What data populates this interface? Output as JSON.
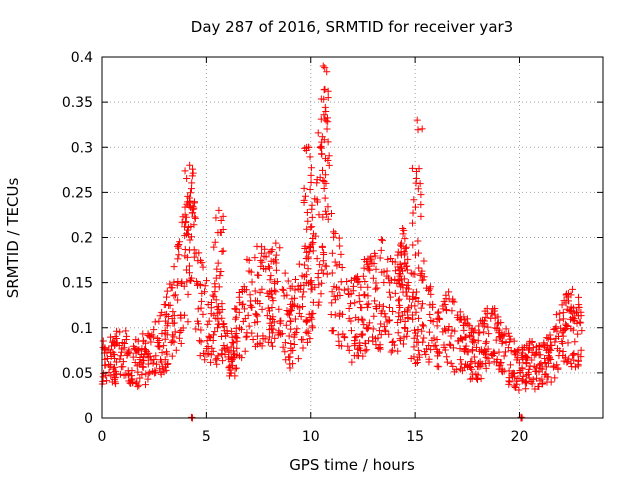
{
  "chart_data": {
    "type": "scatter",
    "title": "Day 287 of 2016, SRMTID for receiver yar3",
    "xlabel": "GPS time / hours",
    "ylabel": "SRMTID / TECUs",
    "xlim": [
      0,
      24
    ],
    "ylim": [
      0,
      0.4
    ],
    "x_ticks": [
      0,
      5,
      10,
      15,
      20
    ],
    "x_tick_labels": [
      "0",
      "5",
      "10",
      "15",
      "20"
    ],
    "y_ticks": [
      0,
      0.05,
      0.1,
      0.15,
      0.2,
      0.25,
      0.3,
      0.35,
      0.4
    ],
    "y_tick_labels": [
      "0",
      "0.05",
      "0.1",
      "0.15",
      "0.2",
      "0.25",
      "0.3",
      "0.35",
      "0.4"
    ],
    "grid": true,
    "marker": "+",
    "color": "#ff0000",
    "trend": [
      [
        0,
        0.06
      ],
      [
        0.5,
        0.065
      ],
      [
        1,
        0.07
      ],
      [
        1.5,
        0.06
      ],
      [
        2,
        0.065
      ],
      [
        2.5,
        0.075
      ],
      [
        3,
        0.09
      ],
      [
        3.5,
        0.12
      ],
      [
        4,
        0.17
      ],
      [
        4.3,
        0.2
      ],
      [
        4.6,
        0.13
      ],
      [
        5,
        0.11
      ],
      [
        5.5,
        0.1
      ],
      [
        6,
        0.07
      ],
      [
        6.5,
        0.09
      ],
      [
        7,
        0.13
      ],
      [
        7.5,
        0.14
      ],
      [
        8,
        0.13
      ],
      [
        8.5,
        0.14
      ],
      [
        9,
        0.1
      ],
      [
        9.5,
        0.12
      ],
      [
        10,
        0.16
      ],
      [
        10.5,
        0.24
      ],
      [
        10.8,
        0.27
      ],
      [
        11,
        0.16
      ],
      [
        11.5,
        0.13
      ],
      [
        12,
        0.11
      ],
      [
        12.5,
        0.12
      ],
      [
        13,
        0.13
      ],
      [
        13.5,
        0.14
      ],
      [
        14,
        0.12
      ],
      [
        14.5,
        0.14
      ],
      [
        15,
        0.1
      ],
      [
        15.3,
        0.13
      ],
      [
        15.6,
        0.11
      ],
      [
        16,
        0.09
      ],
      [
        16.5,
        0.1
      ],
      [
        17,
        0.09
      ],
      [
        17.5,
        0.08
      ],
      [
        18,
        0.07
      ],
      [
        18.5,
        0.09
      ],
      [
        19,
        0.08
      ],
      [
        19.5,
        0.065
      ],
      [
        20,
        0.055
      ],
      [
        20.5,
        0.06
      ],
      [
        21,
        0.055
      ],
      [
        21.5,
        0.07
      ],
      [
        22,
        0.09
      ],
      [
        22.5,
        0.1
      ],
      [
        23,
        0.09
      ]
    ],
    "peaks": [
      {
        "x": 4.2,
        "y": 0.28
      },
      {
        "x": 5.6,
        "y": 0.23
      },
      {
        "x": 9.9,
        "y": 0.3
      },
      {
        "x": 10.6,
        "y": 0.39
      },
      {
        "x": 15.1,
        "y": 0.33
      },
      {
        "x": 14.4,
        "y": 0.21
      }
    ],
    "zero_markers": [
      4.3,
      20.1
    ]
  }
}
